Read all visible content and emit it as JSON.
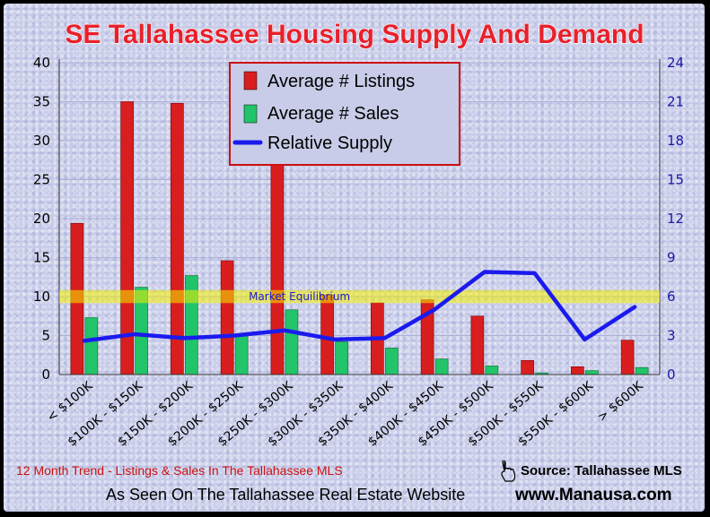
{
  "chart_data": {
    "type": "bar",
    "title": "SE Tallahassee Housing Supply And Demand",
    "categories": [
      "< $100K",
      "$100K - $150K",
      "$150K - $200K",
      "$200K - $250K",
      "$250K - $300K",
      "$300K - $350K",
      "$350K - $400K",
      "$400K - $450K",
      "$450K - $500K",
      "$500K - $550K",
      "$550K - $600K",
      "> $600K"
    ],
    "series": [
      {
        "name": "Average # Listings",
        "kind": "bar",
        "axis": "left",
        "color": "#d81e1e",
        "values": [
          19.4,
          35.0,
          34.8,
          14.6,
          31.5,
          10.2,
          9.2,
          9.6,
          7.5,
          1.8,
          1.0,
          4.4
        ]
      },
      {
        "name": "Average # Sales",
        "kind": "bar",
        "axis": "left",
        "color": "#22c46a",
        "values": [
          7.3,
          11.2,
          12.7,
          5.0,
          8.3,
          4.2,
          3.4,
          2.0,
          1.1,
          0.2,
          0.5,
          0.9
        ]
      },
      {
        "name": "Relative Supply",
        "kind": "line",
        "axis": "right",
        "color": "#1a1aee",
        "values": [
          2.6,
          3.1,
          2.8,
          3.0,
          3.4,
          2.7,
          2.8,
          5.0,
          7.9,
          7.8,
          2.7,
          5.2
        ]
      }
    ],
    "ylim": [
      0,
      40
    ],
    "yticks": [
      0,
      5,
      10,
      15,
      20,
      25,
      30,
      35,
      40
    ],
    "y2lim": [
      0,
      24
    ],
    "y2ticks": [
      0,
      3,
      6,
      9,
      12,
      15,
      18,
      21,
      24
    ],
    "grid": true,
    "legend_position": "top-center",
    "equilibrium": {
      "label": "Market Equilibrium",
      "y2_center": 6,
      "y2_band": [
        5.5,
        6.5
      ],
      "color": "#f5f000"
    }
  },
  "footer": {
    "trend": "12 Month Trend - Listings & Sales In The Tallahassee MLS",
    "source": "Source: Tallahassee MLS",
    "seen": "As Seen On The Tallahassee Real Estate Website",
    "site": "www.Manausa.com",
    "hand_icon": "pointing-hand-icon"
  }
}
